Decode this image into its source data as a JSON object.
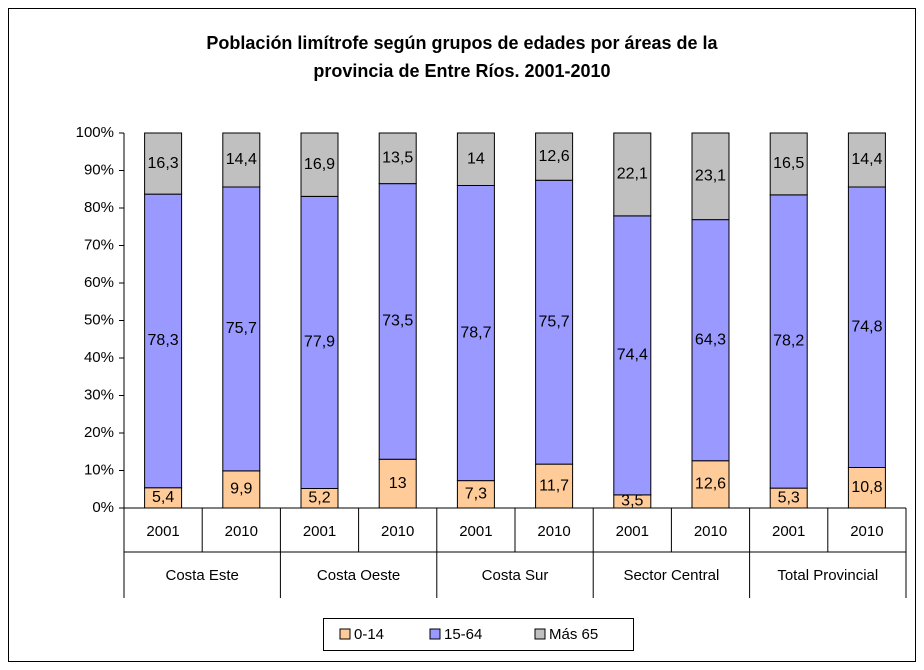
{
  "chart_data": {
    "type": "stacked_bar",
    "title": [
      "Población limítrofe según grupos de edades por áreas de la",
      "provincia de Entre Ríos. 2001-2010"
    ],
    "categories": [
      "2001",
      "2010",
      "2001",
      "2010",
      "2001",
      "2010",
      "2001",
      "2010",
      "2001",
      "2010"
    ],
    "groups": [
      "Costa Este",
      "Costa Oeste",
      "Costa Sur",
      "Sector Central",
      "Total Provincial"
    ],
    "series": [
      {
        "name": "0-14",
        "color": "#ffcc99",
        "values": [
          5.4,
          9.9,
          5.2,
          13,
          7.3,
          11.7,
          3.5,
          12.6,
          5.3,
          10.8
        ],
        "value_labels": [
          "5,4",
          "9,9",
          "5,2",
          "13",
          "7,3",
          "11,7",
          "3,5",
          "12,6",
          "5,3",
          "10,8"
        ]
      },
      {
        "name": "15-64",
        "color": "#9999ff",
        "values": [
          78.3,
          75.7,
          77.9,
          73.5,
          78.7,
          75.7,
          74.4,
          64.3,
          78.2,
          74.8
        ],
        "value_labels": [
          "78,3",
          "75,7",
          "77,9",
          "73,5",
          "78,7",
          "75,7",
          "74,4",
          "64,3",
          "78,2",
          "74,8"
        ]
      },
      {
        "name": "Más 65",
        "color": "#c0c0c0",
        "values": [
          16.3,
          14.4,
          16.9,
          13.5,
          14,
          12.6,
          22.1,
          23.1,
          16.5,
          14.4
        ],
        "value_labels": [
          "16,3",
          "14,4",
          "16,9",
          "13,5",
          "14",
          "12,6",
          "22,1",
          "23,1",
          "16,5",
          "14,4"
        ]
      }
    ],
    "ylim": [
      0,
      100
    ],
    "yticks": [
      {
        "value": 0,
        "label": "0%"
      },
      {
        "value": 10,
        "label": "10%"
      },
      {
        "value": 20,
        "label": "20%"
      },
      {
        "value": 30,
        "label": "30%"
      },
      {
        "value": 40,
        "label": "40%"
      },
      {
        "value": 50,
        "label": "50%"
      },
      {
        "value": 60,
        "label": "60%"
      },
      {
        "value": 70,
        "label": "70%"
      },
      {
        "value": 80,
        "label": "80%"
      },
      {
        "value": 90,
        "label": "90%"
      },
      {
        "value": 100,
        "label": "100%"
      }
    ],
    "legend": "bottom"
  }
}
